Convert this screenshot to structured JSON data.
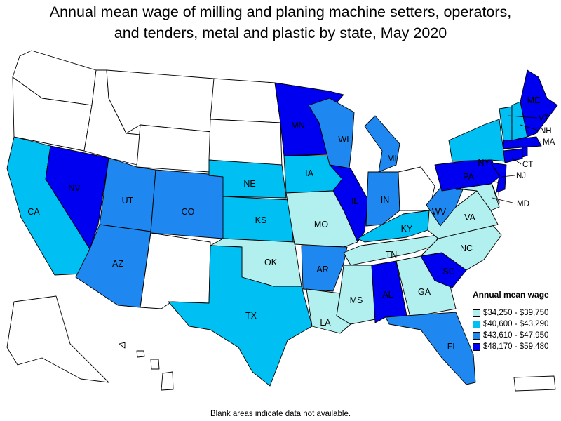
{
  "title": {
    "line1": "Annual mean wage of milling and planing machine setters, operators,",
    "line2": "and tenders, metal and plastic by state, May 2020"
  },
  "legend": {
    "title": "Annual mean wage",
    "items": [
      {
        "label": "$34,250 - $39,750",
        "color": "#b2f0f0"
      },
      {
        "label": "$40,600 - $43,290",
        "color": "#00bff2"
      },
      {
        "label": "$43,610 - $47,950",
        "color": "#1e88f0"
      },
      {
        "label": "$48,170 - $59,480",
        "color": "#0000f0"
      }
    ]
  },
  "footnote": "Blank areas indicate data not available.",
  "chart_data": {
    "type": "choropleth",
    "title": "Annual mean wage of milling and planing machine setters, operators, and tenders, metal and plastic by state, May 2020",
    "legend_title": "Annual mean wage",
    "bins": [
      {
        "range": "$34,250 - $39,750",
        "color": "#b2f0f0"
      },
      {
        "range": "$40,600 - $43,290",
        "color": "#00bff2"
      },
      {
        "range": "$43,610 - $47,950",
        "color": "#1e88f0"
      },
      {
        "range": "$48,170 - $59,480",
        "color": "#0000f0"
      }
    ],
    "states": {
      "WA": null,
      "OR": null,
      "ID": null,
      "MT": null,
      "WY": null,
      "ND": null,
      "SD": null,
      "NM": null,
      "AK": null,
      "HI": null,
      "OH": null,
      "DE": null,
      "PR": null,
      "CA": "$40,600 - $43,290",
      "NV": "$48,170 - $59,480",
      "UT": "$43,610 - $47,950",
      "AZ": "$43,610 - $47,950",
      "CO": "$43,610 - $47,950",
      "NE": "$40,600 - $43,290",
      "KS": "$40,600 - $43,290",
      "OK": "$34,250 - $39,750",
      "TX": "$40,600 - $43,290",
      "MN": "$48,170 - $59,480",
      "IA": "$40,600 - $43,290",
      "MO": "$34,250 - $39,750",
      "AR": "$43,610 - $47,950",
      "LA": "$34,250 - $39,750",
      "WI": "$43,610 - $47,950",
      "IL": "$48,170 - $59,480",
      "MI": "$43,610 - $47,950",
      "IN": "$43,610 - $47,950",
      "KY": "$40,600 - $43,290",
      "TN": "$34,250 - $39,750",
      "MS": "$34,250 - $39,750",
      "AL": "$48,170 - $59,480",
      "GA": "$34,250 - $39,750",
      "FL": "$43,610 - $47,950",
      "SC": "$48,170 - $59,480",
      "NC": "$34,250 - $39,750",
      "VA": "$34,250 - $39,750",
      "WV": "$43,610 - $47,950",
      "MD": "$34,250 - $39,750",
      "PA": "$48,170 - $59,480",
      "NJ": "$48,170 - $59,480",
      "NY": "$40,600 - $43,290",
      "CT": "$48,170 - $59,480",
      "MA": "$48,170 - $59,480",
      "VT": "$40,600 - $43,290",
      "NH": "$40,600 - $43,290",
      "ME": "$48,170 - $59,480",
      "RI": "$48,170 - $59,480"
    }
  }
}
